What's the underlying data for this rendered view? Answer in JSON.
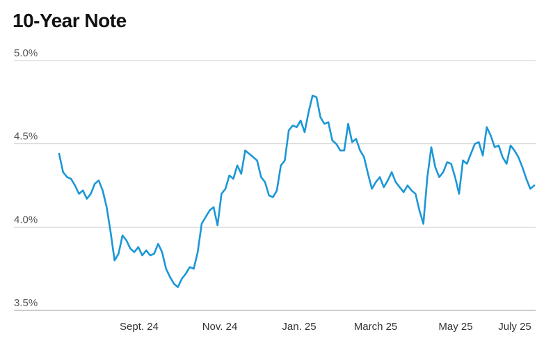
{
  "chart_data": {
    "type": "line",
    "title": "10-Year Note",
    "xlabel": "",
    "ylabel": "",
    "ylim": [
      3.5,
      5.0
    ],
    "y_ticks": [
      "5.0%",
      "4.5%",
      "4.0%",
      "3.5%"
    ],
    "x_ticks": [
      "Sept. 24",
      "Nov. 24",
      "Jan. 25",
      "March 25",
      "May 25",
      "July 25"
    ],
    "grid": "horizontal",
    "line_color": "#1b97d6",
    "series": [
      {
        "values": [
          4.44,
          4.33,
          4.3,
          4.29,
          4.25,
          4.2,
          4.22,
          4.17,
          4.2,
          4.26,
          4.28,
          4.22,
          4.12,
          3.97,
          3.8,
          3.84,
          3.95,
          3.92,
          3.87,
          3.85,
          3.88,
          3.83,
          3.86,
          3.83,
          3.84,
          3.9,
          3.85,
          3.75,
          3.7,
          3.66,
          3.64,
          3.69,
          3.72,
          3.76,
          3.75,
          3.85,
          4.02,
          4.06,
          4.1,
          4.12,
          4.01,
          4.2,
          4.23,
          4.31,
          4.29,
          4.37,
          4.32,
          4.46,
          4.44,
          4.42,
          4.4,
          4.3,
          4.27,
          4.19,
          4.18,
          4.22,
          4.37,
          4.4,
          4.58,
          4.61,
          4.6,
          4.64,
          4.57,
          4.69,
          4.79,
          4.78,
          4.66,
          4.62,
          4.63,
          4.52,
          4.5,
          4.46,
          4.46,
          4.62,
          4.51,
          4.53,
          4.46,
          4.42,
          4.32,
          4.23,
          4.27,
          4.3,
          4.24,
          4.28,
          4.33,
          4.27,
          4.24,
          4.21,
          4.25,
          4.22,
          4.2,
          4.1,
          4.02,
          4.3,
          4.48,
          4.36,
          4.3,
          4.33,
          4.39,
          4.38,
          4.3,
          4.2,
          4.4,
          4.38,
          4.44,
          4.5,
          4.51,
          4.43,
          4.6,
          4.55,
          4.48,
          4.49,
          4.42,
          4.38,
          4.49,
          4.46,
          4.42,
          4.36,
          4.29,
          4.23,
          4.25
        ]
      }
    ]
  }
}
